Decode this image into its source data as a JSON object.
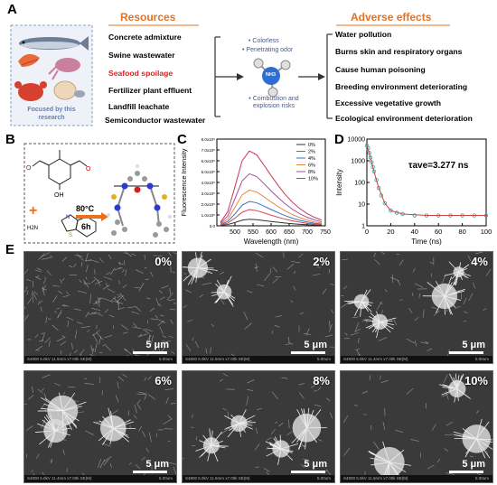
{
  "panel_a": {
    "letter": "A",
    "resources_heading": "Resources",
    "adverse_heading": "Adverse effects",
    "research_label": "Focused by this research",
    "resources": [
      "Concrete admixture",
      "Swine wastewater",
      "Seafood spoilage",
      "Fertilizer plant effluent",
      "Landfill leachate",
      "Semiconductor wastewater"
    ],
    "highlight_color": "#e0201e",
    "heading_color": "#e8701e",
    "properties_top": [
      "Colorless",
      "Penetrating odor"
    ],
    "properties_bottom": [
      "Combustion and explosion risks"
    ],
    "molecule_label": "NH3",
    "adverse_effects": [
      "Water pollution",
      "Burns skin and respiratory organs",
      "Cause human poisoning",
      "Breeding environment  deteriorating",
      "Excessive vegetative growth",
      "Ecological environment deterioration"
    ]
  },
  "panel_b": {
    "letter": "B",
    "condition_temp": "80°C",
    "condition_time": "6h",
    "reactant_label": "H2N",
    "hydroxyl": "OH",
    "plus": "+"
  },
  "panel_c": {
    "letter": "C",
    "chart_data": {
      "type": "line",
      "title": "",
      "xlabel": "Wavelength (nm)",
      "ylabel": "Fluorescence Intensity",
      "xlim": [
        450,
        750
      ],
      "ylim": [
        0,
        800000
      ],
      "x_ticks": [
        "500",
        "550",
        "600",
        "650",
        "700",
        "750"
      ],
      "y_ticks": [
        "0.0",
        "1.0x10⁵",
        "2.0x10⁵",
        "3.0x10⁵",
        "4.0x10⁵",
        "5.0x10⁵",
        "6.0x10⁵",
        "7.0x10⁵",
        "8.0x10⁵"
      ],
      "x": [
        460,
        480,
        500,
        520,
        540,
        560,
        580,
        600,
        620,
        640,
        660,
        680,
        700,
        720,
        740
      ],
      "series": [
        {
          "name": "0%",
          "color": "#333333",
          "values": [
            5000,
            12000,
            30000,
            52000,
            60000,
            56000,
            48000,
            40000,
            32000,
            25000,
            19000,
            14000,
            10000,
            7000,
            5000
          ]
        },
        {
          "name": "2%",
          "color": "#d24b4b",
          "values": [
            8000,
            25000,
            70000,
            125000,
            150000,
            140000,
            120000,
            98000,
            78000,
            60000,
            45000,
            33000,
            23000,
            16000,
            11000
          ]
        },
        {
          "name": "4%",
          "color": "#3f6fc4",
          "values": [
            12000,
            40000,
            110000,
            190000,
            225000,
            212000,
            182000,
            150000,
            120000,
            92000,
            69000,
            50000,
            35000,
            24000,
            16000
          ]
        },
        {
          "name": "6%",
          "color": "#e8893a",
          "values": [
            17000,
            60000,
            170000,
            285000,
            330000,
            312000,
            268000,
            220000,
            176000,
            136000,
            102000,
            74000,
            52000,
            36000,
            24000
          ]
        },
        {
          "name": "8%",
          "color": "#a54fa5",
          "values": [
            24000,
            90000,
            250000,
            415000,
            480000,
            455000,
            390000,
            322000,
            258000,
            200000,
            150000,
            110000,
            78000,
            54000,
            36000
          ]
        },
        {
          "name": "10%",
          "color": "#c8395a",
          "values": [
            33000,
            130000,
            360000,
            600000,
            690000,
            655000,
            562000,
            463000,
            370000,
            285000,
            214000,
            157000,
            112000,
            78000,
            52000
          ]
        }
      ],
      "legend_position": "top-right",
      "grid": false
    }
  },
  "panel_d": {
    "letter": "D",
    "chart_data": {
      "type": "scatter",
      "title": "",
      "xlabel": "Time (ns)",
      "ylabel": "Intensity",
      "xlim": [
        0,
        100
      ],
      "ylim_log": [
        1,
        10000
      ],
      "x_ticks": [
        "0",
        "20",
        "40",
        "60",
        "80",
        "100"
      ],
      "y_ticks": [
        "1",
        "10",
        "100",
        "1000",
        "10000"
      ],
      "annotation": "τave=3.277 ns",
      "lifetime_ns": 3.277,
      "series": [
        {
          "name": "decay",
          "color": "#2aa39a",
          "x": [
            0,
            1,
            2,
            3,
            4,
            5,
            6,
            8,
            10,
            12,
            15,
            20,
            25,
            30,
            40,
            50,
            60,
            70,
            80,
            90,
            100
          ],
          "values": [
            5000,
            3800,
            2300,
            1400,
            850,
            520,
            320,
            130,
            55,
            25,
            11,
            5,
            4,
            3.5,
            3,
            3,
            3,
            3,
            3,
            3,
            3
          ]
        },
        {
          "name": "fit",
          "color": "#d04040",
          "x": [
            0,
            2,
            4,
            6,
            8,
            10,
            15,
            20,
            30,
            50,
            100
          ],
          "values": [
            5000,
            2300,
            850,
            320,
            130,
            55,
            11,
            5,
            3.5,
            3,
            3
          ]
        }
      ],
      "grid": false
    }
  },
  "panel_e": {
    "letter": "E",
    "images": [
      {
        "pct": "0%",
        "scale": "5 μm",
        "footer": "S4800 5.0kV 11.5mm x7.00k SE(M)",
        "footer_right": "5.00um",
        "density": 0.9,
        "clusters": 0
      },
      {
        "pct": "2%",
        "scale": "5 μm",
        "footer": "S4800 5.0kV 11.6mm x7.00k SE(M)",
        "footer_right": "5.00um",
        "density": 0.25,
        "clusters": 2
      },
      {
        "pct": "4%",
        "scale": "5 μm",
        "footer": "S4800 5.0kV 11.4mm x7.00k SE(M)",
        "footer_right": "5.00um",
        "density": 0.3,
        "clusters": 4
      },
      {
        "pct": "6%",
        "scale": "5 μm",
        "footer": "S4800 5.0kV 11.4mm x7.00k SE(M)",
        "footer_right": "5.00um",
        "density": 0.35,
        "clusters": 3
      },
      {
        "pct": "8%",
        "scale": "5 μm",
        "footer": "S4800 5.0kV 11.6mm x7.00k SE(M)",
        "footer_right": "5.00um",
        "density": 0.2,
        "clusters": 4
      },
      {
        "pct": "10%",
        "scale": "5 μm",
        "footer": "S4800 5.0kV 11.6mm x7.00k SE(M)",
        "footer_right": "5.00um",
        "density": 0.15,
        "clusters": 3
      }
    ]
  }
}
